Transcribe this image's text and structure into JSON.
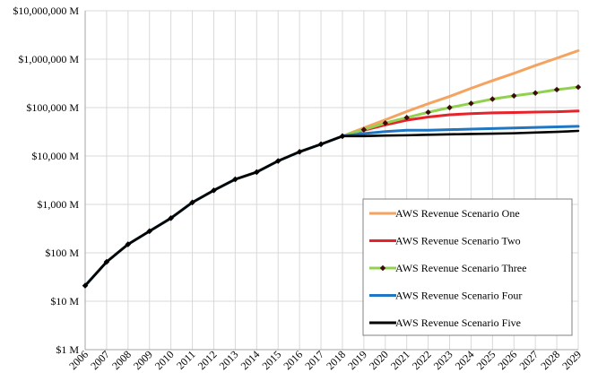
{
  "chart_data": {
    "type": "line",
    "title": "",
    "xlabel": "",
    "ylabel": "",
    "yscale": "log",
    "ylim": [
      1,
      10000000
    ],
    "y_ticks": [
      1,
      10,
      100,
      1000,
      10000,
      100000,
      1000000,
      10000000
    ],
    "y_tick_labels": [
      "$1 M",
      "$10 M",
      "$100 M",
      "$1,000 M",
      "$10,000 M",
      "$100,000 M",
      "$1,000,000 M",
      "$10,000,000 M"
    ],
    "categories": [
      "2006",
      "2007",
      "2008",
      "2009",
      "2010",
      "2011",
      "2012",
      "2013",
      "2014",
      "2015",
      "2016",
      "2017",
      "2018",
      "2019",
      "2020",
      "2021",
      "2022",
      "2023",
      "2024",
      "2025",
      "2026",
      "2027",
      "2028",
      "2029"
    ],
    "grid": true,
    "legend_position": "bottom-right",
    "series": [
      {
        "name": "AWS Revenue Scenario One",
        "color": "#f4a460",
        "marker": "none",
        "values": [
          21,
          65,
          150,
          280,
          520,
          1100,
          1950,
          3300,
          4650,
          7900,
          12200,
          17500,
          25700,
          38000,
          56000,
          83000,
          120000,
          170000,
          250000,
          360000,
          510000,
          740000,
          1050000,
          1500000
        ]
      },
      {
        "name": "AWS Revenue Scenario Two",
        "color": "#e8222a",
        "marker": "none",
        "values": [
          21,
          65,
          150,
          280,
          520,
          1100,
          1950,
          3300,
          4650,
          7900,
          12200,
          17500,
          25700,
          34000,
          44000,
          55000,
          64000,
          71000,
          75000,
          78000,
          79000,
          81000,
          82000,
          85000
        ]
      },
      {
        "name": "AWS Revenue Scenario Three",
        "color": "#92d050",
        "marker": "diamond",
        "marker_color": "#3d0b0b",
        "values": [
          21,
          65,
          150,
          280,
          520,
          1100,
          1950,
          3300,
          4650,
          7900,
          12200,
          17500,
          25700,
          35000,
          48000,
          62000,
          80000,
          100000,
          122000,
          150000,
          175000,
          200000,
          235000,
          265000
        ]
      },
      {
        "name": "AWS Revenue Scenario Four",
        "color": "#1f77c4",
        "marker": "none",
        "values": [
          21,
          65,
          150,
          280,
          520,
          1100,
          1950,
          3300,
          4650,
          7900,
          12200,
          17500,
          25700,
          29000,
          32000,
          34000,
          34000,
          35000,
          36000,
          37000,
          38000,
          39000,
          40000,
          41000
        ]
      },
      {
        "name": "AWS Revenue Scenario Five",
        "color": "#000000",
        "marker": "diamond",
        "marker_color": "#000000",
        "values": [
          21,
          65,
          150,
          280,
          520,
          1100,
          1950,
          3300,
          4650,
          7900,
          12200,
          17500,
          25700,
          25800,
          26500,
          26800,
          27500,
          28000,
          28500,
          29000,
          29500,
          30500,
          31500,
          33000
        ]
      }
    ]
  }
}
